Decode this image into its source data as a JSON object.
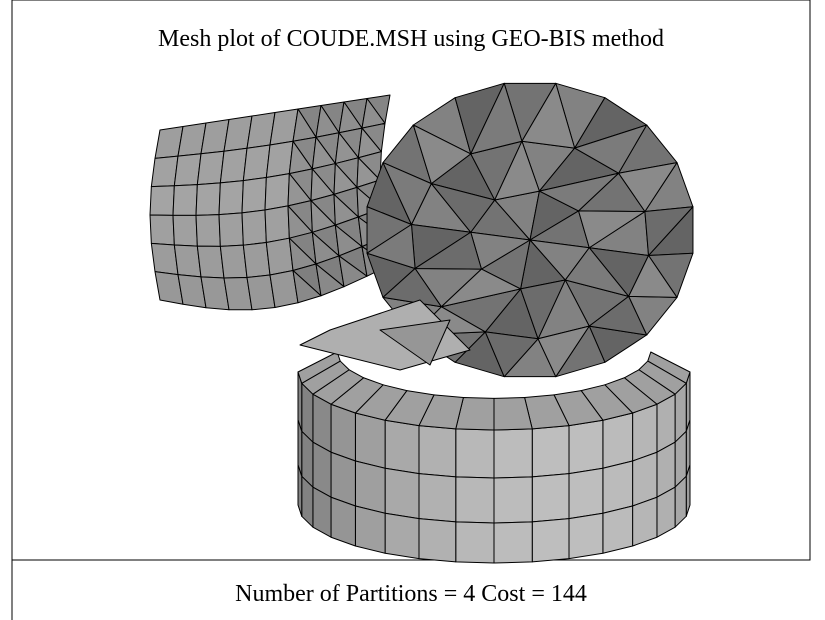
{
  "figure": {
    "title": "Mesh plot of COUDE.MSH using GEO-BIS method",
    "caption": "Number of Partitions =  4 Cost =  144"
  }
}
